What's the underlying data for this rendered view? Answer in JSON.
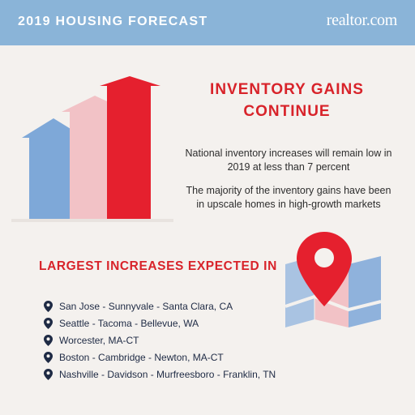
{
  "header": {
    "title": "2019 HOUSING FORECAST",
    "brand": "realtor.com"
  },
  "headline": {
    "line1": "INVENTORY GAINS",
    "line2": "CONTINUE"
  },
  "paragraphs": [
    "National inventory increases will remain low in 2019 at less than 7 percent",
    "The majority of the inventory gains have been in upscale homes in high-growth markets"
  ],
  "section_title": "LARGEST INCREASES EXPECTED IN",
  "markets": [
    "San Jose - Sunnyvale - Santa Clara, CA",
    "Seattle - Tacoma - Bellevue, WA",
    "Worcester, MA-CT",
    "Boston - Cambridge - Newton, MA-CT",
    "Nashville - Davidson - Murfreesboro - Franklin, TN"
  ],
  "icons": {
    "market": "location-pin-icon",
    "arrows": "house-arrow-icon",
    "map": "map-pin-icon"
  },
  "colors": {
    "header_bg": "#8ab4d8",
    "accent_red": "#d8232a",
    "light_blue": "#7ea8d8",
    "pink": "#f2c2c6",
    "navy": "#1e2a44",
    "background": "#f4f1ee"
  }
}
